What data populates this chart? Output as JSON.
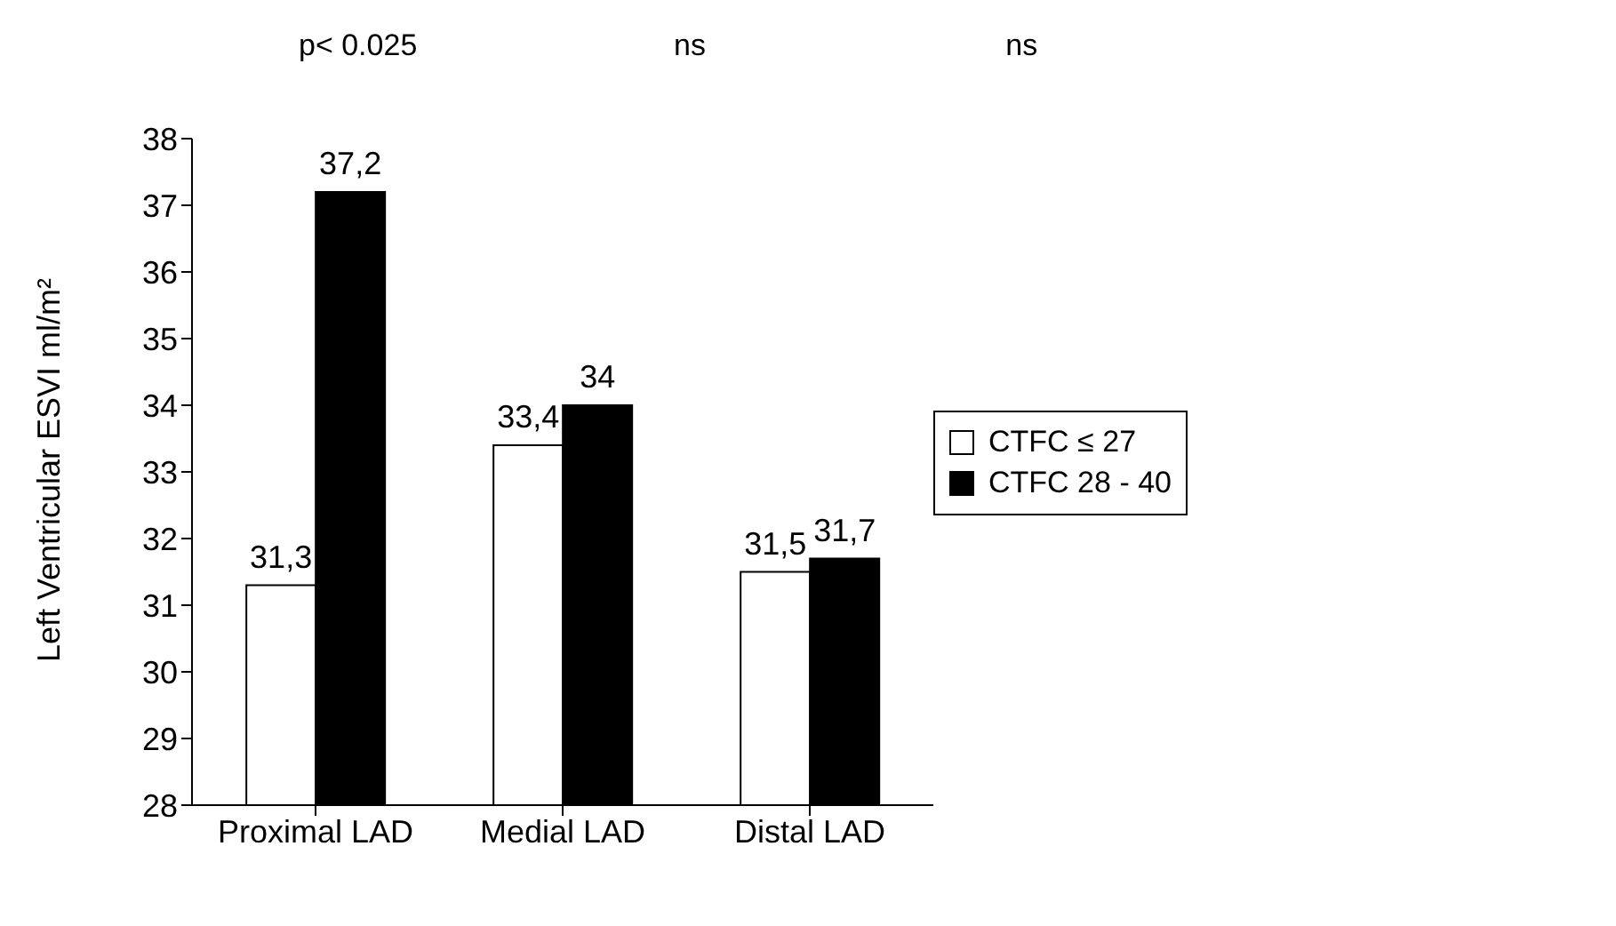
{
  "chart_data": {
    "type": "bar",
    "ylabel": "Left Ventricular ESVI ml/m²",
    "categories": [
      "Proximal  LAD",
      "Medial  LAD",
      "Distal  LAD"
    ],
    "series": [
      {
        "name": "CTFC ≤ 27",
        "color": "#ffffff",
        "values": [
          31.3,
          33.4,
          31.5
        ],
        "value_labels": [
          "31,3",
          "33,4",
          "31,5"
        ]
      },
      {
        "name": "CTFC 28 - 40",
        "color": "#000000",
        "values": [
          37.2,
          34,
          31.7
        ],
        "value_labels": [
          "37,2",
          "34",
          "31,7"
        ]
      }
    ],
    "ylim": [
      28,
      38
    ],
    "yticks": [
      28,
      29,
      30,
      31,
      32,
      33,
      34,
      35,
      36,
      37,
      38
    ],
    "grid": false,
    "legend": "right",
    "annotations": [
      "p< 0.025",
      "ns",
      "ns"
    ]
  }
}
